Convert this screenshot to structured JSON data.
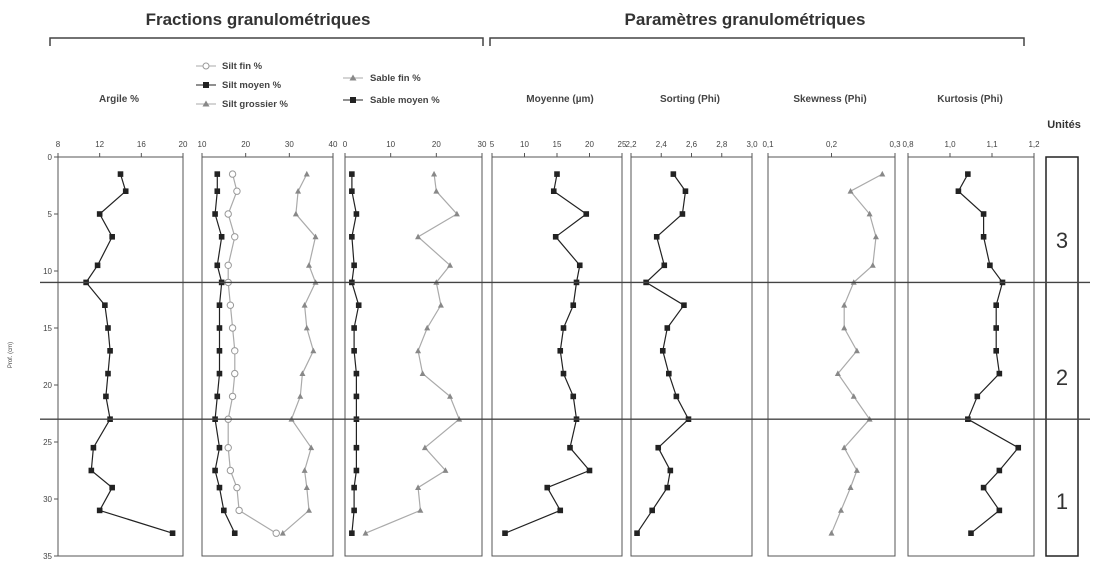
{
  "group_titles": {
    "fractions": "Fractions granulométriques",
    "parametres": "Paramètres granulométriques"
  },
  "y_axis": {
    "label": "Prof. (cm)",
    "ticks": [
      "0",
      "5",
      "10",
      "15",
      "20",
      "25",
      "30",
      "35"
    ]
  },
  "units": {
    "title": "Unités",
    "labels": [
      "3",
      "2",
      "1"
    ],
    "boundaries_depth": [
      11,
      23
    ]
  },
  "panel_titles": {
    "argile": "Argile %",
    "moyenne": "Moyenne (µm)",
    "sorting": "Sorting (Phi)",
    "skewness": "Skewness (Phi)",
    "kurtosis": "Kurtosis (Phi)"
  },
  "legend": {
    "silt_fin": "Silt fin %",
    "silt_moyen": "Silt moyen %",
    "silt_grossier": "Silt grossier %",
    "sable_fin": "Sable fin %",
    "sable_moyen": "Sable moyen %"
  },
  "colors": {
    "dark": "#222222",
    "light": "#aaaaaa",
    "frame": "#555555"
  },
  "chart_data": {
    "type": "line",
    "orientation": "vertical-depth-profile",
    "depth": [
      1.5,
      3,
      5,
      7,
      9.5,
      11,
      13,
      15,
      17,
      19,
      21,
      23,
      25.5,
      27.5,
      29,
      31,
      33
    ],
    "ylim": [
      0,
      35
    ],
    "panels": [
      {
        "id": "argile",
        "xlim": [
          8,
          20
        ],
        "xticks": [
          "8",
          "12",
          "16",
          "20"
        ],
        "series": [
          {
            "name": "Argile %",
            "style": "dark-square",
            "values": [
              14,
              14.5,
              12,
              13.2,
              11.8,
              10.7,
              12.5,
              12.8,
              13,
              12.8,
              12.6,
              13,
              11.4,
              11.2,
              13.2,
              12,
              19
            ]
          }
        ]
      },
      {
        "id": "silts",
        "xlim": [
          10,
          40
        ],
        "xticks": [
          "10",
          "20",
          "30",
          "40"
        ],
        "series": [
          {
            "name": "Silt fin %",
            "style": "light-circle",
            "values": [
              17,
              18,
              16,
              17.5,
              16,
              16,
              16.5,
              17,
              17.5,
              17.5,
              17,
              16,
              16,
              16.5,
              18,
              18.5,
              27
            ]
          },
          {
            "name": "Silt moyen %",
            "style": "dark-square",
            "values": [
              13.5,
              13.5,
              13,
              14.5,
              13.5,
              14.5,
              14,
              14,
              14,
              14,
              13.5,
              13,
              14,
              13,
              14,
              15,
              17.5
            ]
          },
          {
            "name": "Silt grossier %",
            "style": "light-triangle",
            "values": [
              34,
              32,
              31.5,
              36,
              34.5,
              36,
              33.5,
              34,
              35.5,
              33,
              32.5,
              30.5,
              35,
              33.5,
              34,
              34.5,
              28.5
            ]
          }
        ]
      },
      {
        "id": "sables",
        "xlim": [
          0,
          30
        ],
        "xticks": [
          "0",
          "10",
          "20",
          "30"
        ],
        "series": [
          {
            "name": "Sable fin %",
            "style": "light-triangle",
            "values": [
              19.5,
              20,
              24.5,
              16,
              23,
              20,
              21,
              18,
              16,
              17,
              23,
              25,
              17.5,
              22,
              16,
              16.5,
              4.5
            ]
          },
          {
            "name": "Sable moyen %",
            "style": "dark-square",
            "values": [
              1.5,
              1.5,
              2.5,
              1.5,
              2,
              1.5,
              3,
              2,
              2,
              2.5,
              2.5,
              2.5,
              2.5,
              2.5,
              2,
              2,
              1.5
            ]
          }
        ]
      },
      {
        "id": "moyenne",
        "xlim": [
          5,
          25
        ],
        "xticks": [
          "5",
          "10",
          "15",
          "20",
          "25"
        ],
        "series": [
          {
            "name": "Moyenne (µm)",
            "style": "dark-square",
            "values": [
              15,
              14.5,
              19.5,
              14.8,
              18.5,
              18,
              17.5,
              16,
              15.5,
              16,
              17.5,
              18,
              17,
              20,
              13.5,
              15.5,
              7
            ]
          }
        ]
      },
      {
        "id": "sorting",
        "xlim": [
          2.2,
          3.0
        ],
        "xticks": [
          "2,2",
          "2,4",
          "2,6",
          "2,8",
          "3,0"
        ],
        "series": [
          {
            "name": "Sorting (Phi)",
            "style": "dark-square",
            "values": [
              2.48,
              2.56,
              2.54,
              2.37,
              2.42,
              2.3,
              2.55,
              2.44,
              2.41,
              2.45,
              2.5,
              2.58,
              2.38,
              2.46,
              2.44,
              2.34,
              2.24
            ]
          }
        ]
      },
      {
        "id": "skewness",
        "xlim": [
          0.1,
          0.3
        ],
        "xticks": [
          "0,1",
          "0,2",
          "0,3"
        ],
        "series": [
          {
            "name": "Skewness (Phi)",
            "style": "light-triangle",
            "values": [
              0.28,
              0.23,
              0.26,
              0.27,
              0.265,
              0.235,
              0.22,
              0.22,
              0.24,
              0.21,
              0.235,
              0.26,
              0.22,
              0.24,
              0.23,
              0.215,
              0.2
            ]
          }
        ]
      },
      {
        "id": "kurtosis",
        "xlim": [
          0.8,
          1.2
        ],
        "xticks": [
          "0,8",
          "1,0",
          "1,1",
          "1,2"
        ],
        "series": [
          {
            "name": "Kurtosis (Phi)",
            "style": "dark-square",
            "values": [
              0.99,
              0.96,
              1.04,
              1.04,
              1.06,
              1.1,
              1.08,
              1.08,
              1.08,
              1.09,
              1.02,
              0.99,
              1.15,
              1.09,
              1.04,
              1.09,
              1.0
            ]
          }
        ]
      }
    ]
  }
}
